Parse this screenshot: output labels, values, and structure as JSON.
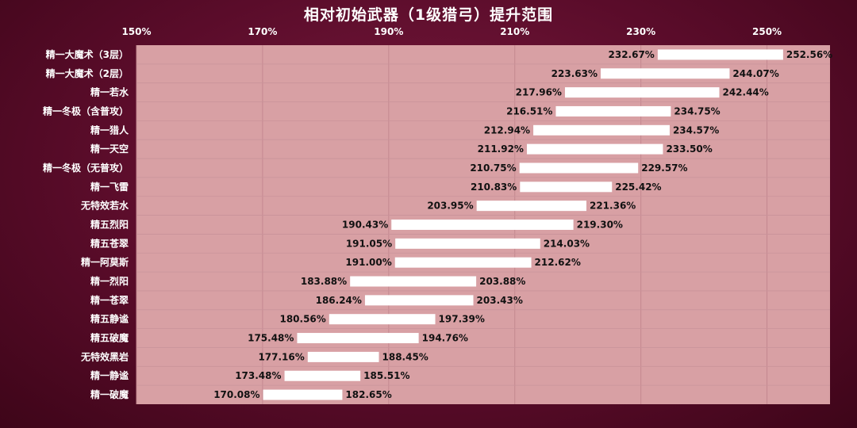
{
  "chart_data": {
    "type": "bar",
    "title": "相对初始武器（1级猎弓）提升范围",
    "xlim": [
      150,
      260
    ],
    "x_ticks": [
      "150%",
      "170%",
      "190%",
      "210%",
      "230%",
      "250%"
    ],
    "tick_values": [
      150,
      170,
      190,
      210,
      230,
      250
    ],
    "grid": true,
    "unit": "%",
    "categories": [
      "精一大魔术（3层）",
      "精一大魔术（2层）",
      "精一若水",
      "精一冬极（含普攻）",
      "精一猎人",
      "精一天空",
      "精一冬极（无普攻）",
      "精一飞雷",
      "无特效若水",
      "精五烈阳",
      "精五苍翠",
      "精一阿莫斯",
      "精一烈阳",
      "精一苍翠",
      "精五静谧",
      "精五破魔",
      "无特效黑岩",
      "精一静谧",
      "精一破魔"
    ],
    "low": [
      232.67,
      223.63,
      217.96,
      216.51,
      212.94,
      211.92,
      210.75,
      210.83,
      203.95,
      190.43,
      191.05,
      191.0,
      183.88,
      186.24,
      180.56,
      175.48,
      177.16,
      173.48,
      170.08
    ],
    "high": [
      252.56,
      244.07,
      242.44,
      234.75,
      234.57,
      233.5,
      229.57,
      225.42,
      221.36,
      219.3,
      214.03,
      212.62,
      203.88,
      203.43,
      197.39,
      194.76,
      188.45,
      185.51,
      182.65
    ],
    "low_labels": [
      "232.67%",
      "223.63%",
      "217.96%",
      "216.51%",
      "212.94%",
      "211.92%",
      "210.75%",
      "210.83%",
      "203.95%",
      "190.43%",
      "191.05%",
      "191.00%",
      "183.88%",
      "186.24%",
      "180.56%",
      "175.48%",
      "177.16%",
      "173.48%",
      "170.08%"
    ],
    "high_labels": [
      "252.56%",
      "244.07%",
      "242.44%",
      "234.75%",
      "234.57%",
      "233.50%",
      "229.57%",
      "225.42%",
      "221.36%",
      "219.30%",
      "214.03%",
      "212.62%",
      "203.88%",
      "203.43%",
      "197.39%",
      "194.76%",
      "188.45%",
      "185.51%",
      "182.65%"
    ]
  },
  "colors": {
    "background": "#5c0f2c",
    "plot_area": "#d8a0a4",
    "bar": "#ffffff",
    "text_light": "#ffffff",
    "text_dark": "#111111"
  }
}
